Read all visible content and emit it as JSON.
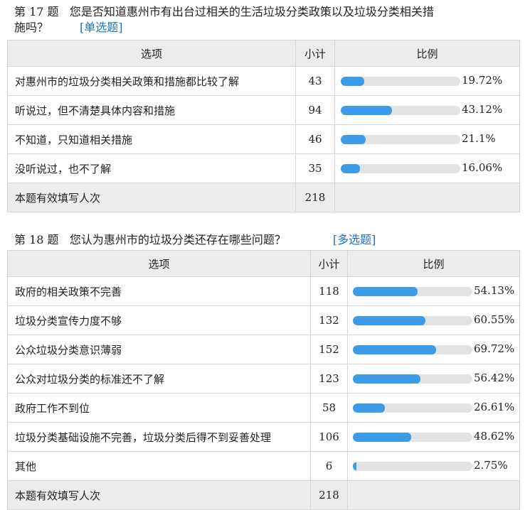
{
  "q17": {
    "number": "第 17 题",
    "text_line1": "您是否知道惠州市有出台过相关的生活垃圾分类政策以及垃圾分类相关措",
    "text_line2": "施吗？",
    "type": "[单选题]",
    "headers": {
      "option": "选项",
      "count": "小计",
      "ratio": "比例"
    },
    "rows": [
      {
        "option": "对惠州市的垃圾分类相关政策和措施都比较了解",
        "count": "43",
        "ratio": 0.1972,
        "percent": "19.72%"
      },
      {
        "option": "听说过，但不清楚具体内容和措施",
        "count": "94",
        "ratio": 0.4312,
        "percent": "43.12%"
      },
      {
        "option": "不知道，只知道相关措施",
        "count": "46",
        "ratio": 0.211,
        "percent": "21.1%"
      },
      {
        "option": "没听说过，也不了解",
        "count": "35",
        "ratio": 0.1606,
        "percent": "16.06%"
      }
    ],
    "total": {
      "label": "本题有效填写人次",
      "count": "218"
    }
  },
  "q18": {
    "number": "第 18 题",
    "text": "您认为惠州市的垃圾分类还存在哪些问题？",
    "type": "[多选题]",
    "headers": {
      "option": "选项",
      "count": "小计",
      "ratio": "比例"
    },
    "rows": [
      {
        "option": "政府的相关政策不完善",
        "count": "118",
        "ratio": 0.5413,
        "percent": "54.13%"
      },
      {
        "option": "垃圾分类宣传力度不够",
        "count": "132",
        "ratio": 0.6055,
        "percent": "60.55%"
      },
      {
        "option": "公众垃圾分类意识薄弱",
        "count": "152",
        "ratio": 0.6972,
        "percent": "69.72%"
      },
      {
        "option": "公众对垃圾分类的标准还不了解",
        "count": "123",
        "ratio": 0.5642,
        "percent": "56.42%"
      },
      {
        "option": "政府工作不到位",
        "count": "58",
        "ratio": 0.2661,
        "percent": "26.61%"
      },
      {
        "option": "垃圾分类基础设施不完善，垃圾分类后得不到妥善处理",
        "count": "106",
        "ratio": 0.4862,
        "percent": "48.62%"
      },
      {
        "option": "其他",
        "count": "6",
        "ratio": 0.0275,
        "percent": "2.75%"
      }
    ],
    "total": {
      "label": "本题有效填写人次",
      "count": "218"
    }
  },
  "colors": {
    "bar_fill": "#3b9be6",
    "bar_track": "#e3e3e3",
    "header_bg": "#ececec",
    "type_link": "#1a73c8"
  }
}
